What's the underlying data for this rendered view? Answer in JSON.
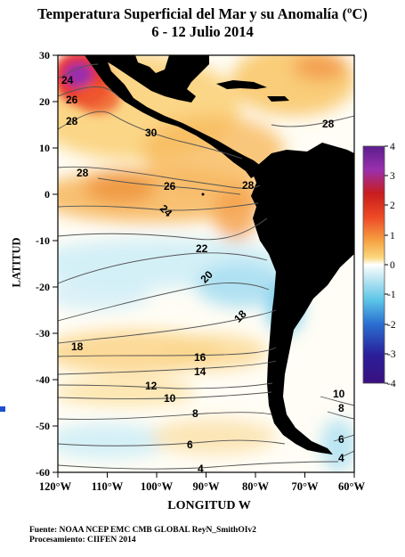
{
  "title": {
    "line1": "Temperatura Superficial del Mar y su Anomalía (ºC)",
    "line2": "6 - 12 Julio 2014"
  },
  "axes": {
    "x_title": "LONGITUD W",
    "y_title": "LATITUD",
    "x_ticks": [
      "120°W",
      "110°W",
      "100°W",
      "90°W",
      "80°W",
      "70°W",
      "60°W"
    ],
    "y_ticks": [
      "30",
      "20",
      "10",
      "0",
      "-10",
      "-20",
      "-30",
      "-40",
      "-50",
      "-60"
    ]
  },
  "colorbar": {
    "labels": [
      "4",
      "3",
      "2",
      "1",
      "0",
      "-1",
      "-2",
      "-3",
      "-4"
    ],
    "colors": [
      "#5b1e8c",
      "#9b2fae",
      "#d01f1f",
      "#ee4a25",
      "#f6a343",
      "#fbd77e",
      "#ffffff",
      "#bde6f2",
      "#5bc5e8",
      "#2a6fd1",
      "#2a1f9a",
      "#3a1080"
    ]
  },
  "contour_labels": [
    "24",
    "26",
    "28",
    "30",
    "28",
    "28",
    "26",
    "28",
    "24",
    "22",
    "20",
    "18",
    "18",
    "16",
    "14",
    "12",
    "10",
    "8",
    "6",
    "4",
    "10",
    "8",
    "6",
    "4"
  ],
  "footer": {
    "source": "Fuente:  NOAA NCEP EMC CMB GLOBAL ReyN_SmithOIv2",
    "processing": "Procesamiento: CIIFEN 2014"
  }
}
